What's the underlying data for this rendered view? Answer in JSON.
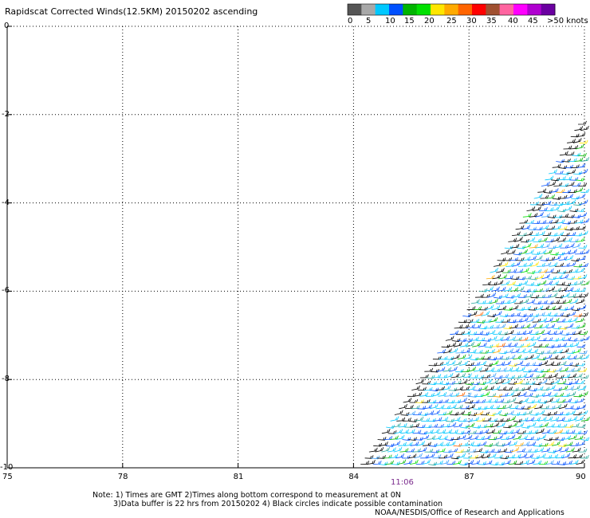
{
  "title": "Rapidscat Corrected Winds(12.5KM) 20150202 ascending",
  "colorbar": {
    "swatches": [
      "#555555",
      "#a8a8a8",
      "#00c8ff",
      "#0050ff",
      "#00b400",
      "#00e000",
      "#ffe600",
      "#ffaa00",
      "#ff6400",
      "#ff0000",
      "#a05030",
      "#ff64a0",
      "#ff00ff",
      "#b000d0",
      "#6a00a0"
    ],
    "labels": [
      "0",
      "5",
      "10",
      "15",
      "20",
      "25",
      "30",
      "35",
      "40",
      "45",
      ">50 knots"
    ]
  },
  "chart_data": {
    "type": "scatter",
    "subtype": "wind-barbs",
    "title": "Rapidscat Corrected Winds(12.5KM) 20150202 ascending",
    "xlabel": "",
    "ylabel": "",
    "xlim": [
      75,
      90
    ],
    "ylim": [
      -10,
      0
    ],
    "x_ticks": [
      "75",
      "78",
      "81",
      "84",
      "87",
      "90"
    ],
    "y_ticks": [
      "0",
      "-2",
      "-4",
      "-6",
      "-8",
      "-10"
    ],
    "grid": true,
    "swath": {
      "edge": [
        [
          84,
          -10
        ],
        [
          87,
          -6.2
        ],
        [
          90,
          -1.8
        ]
      ],
      "lat_range": [
        -10,
        -1.8
      ],
      "lon_range": [
        84,
        90
      ]
    },
    "speed_units": "knots",
    "dominant_speed_knots": [
      5,
      15
    ],
    "time_annotation": {
      "label": "11:06",
      "lon": 85.3
    }
  },
  "notes": {
    "line1": "Note: 1) Times are GMT 2)Times along bottom correspond to measurement at 0N",
    "line2": "3)Data buffer is 22 hrs from 20150202 4) Black circles indicate possible contamination",
    "line3": "NOAA/NESDIS/Office of Research and Applications"
  },
  "time_label": "11:06"
}
